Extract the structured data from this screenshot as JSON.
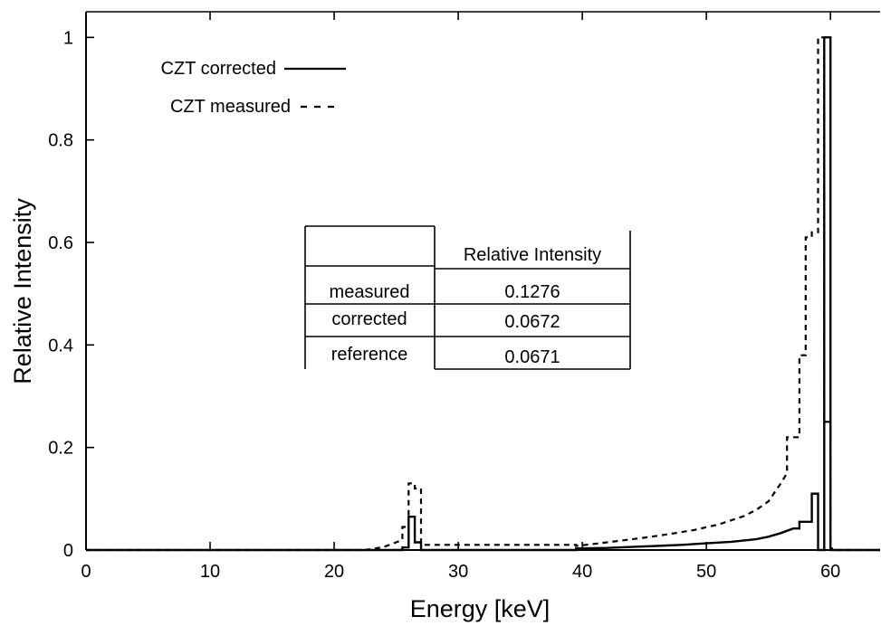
{
  "chart_data": {
    "type": "line",
    "title": "",
    "xlabel": "Energy [keV]",
    "ylabel": "Relative Intensity",
    "xlim": [
      0,
      64
    ],
    "ylim": [
      0,
      1.05
    ],
    "xticks": [
      0,
      10,
      20,
      30,
      40,
      50,
      60
    ],
    "xtick_labels": [
      "0",
      "10",
      "20",
      "30",
      "40",
      "50",
      "60"
    ],
    "yticks": [
      0,
      0.2,
      0.4,
      0.6,
      0.8,
      1
    ],
    "ytick_labels": [
      "0",
      "0.2",
      "0.4",
      "0.6",
      "0.8",
      "1"
    ],
    "grid": false,
    "legend_position": "top-left",
    "series": [
      {
        "name": "CZT corrected",
        "style": "solid",
        "x": [
          0,
          25.5,
          25.5,
          26,
          26,
          26.5,
          26.5,
          27,
          27,
          39.5,
          39.5,
          42,
          44,
          46,
          48,
          50,
          52,
          54,
          55,
          56,
          57,
          57.5,
          57.5,
          58.5,
          58.5,
          59,
          59,
          59.5,
          59.5,
          60,
          60,
          64
        ],
        "y": [
          0,
          0,
          0.005,
          0.005,
          0.065,
          0.065,
          0.015,
          0.015,
          0,
          0,
          0.003,
          0.004,
          0.006,
          0.008,
          0.01,
          0.013,
          0.016,
          0.021,
          0.026,
          0.033,
          0.042,
          0.042,
          0.055,
          0.055,
          0.11,
          0.11,
          0,
          0,
          1.0,
          1.0,
          0,
          0
        ]
      },
      {
        "name": "CZT measured",
        "style": "dashed",
        "x": [
          0,
          22.5,
          23,
          24,
          25,
          25.5,
          25.5,
          26,
          26,
          26.5,
          26.5,
          27,
          27,
          39.5,
          39.5,
          41,
          43,
          45,
          47,
          49,
          51,
          53,
          54,
          55,
          56,
          56.5,
          56.5,
          57.5,
          57.5,
          58,
          58,
          58.5,
          58.5,
          59,
          59,
          59.5,
          59.5,
          60,
          60,
          60.5,
          60.5,
          64
        ],
        "y": [
          0,
          0,
          0.002,
          0.006,
          0.015,
          0.02,
          0.045,
          0.045,
          0.13,
          0.13,
          0.12,
          0.12,
          0.01,
          0.01,
          0.008,
          0.012,
          0.018,
          0.024,
          0.031,
          0.039,
          0.05,
          0.066,
          0.078,
          0.095,
          0.13,
          0.15,
          0.22,
          0.22,
          0.38,
          0.38,
          0.61,
          0.61,
          0.62,
          0.62,
          1.0,
          1.0,
          0.25,
          0.25,
          0.003,
          0.003,
          0,
          0
        ]
      }
    ],
    "inset_table": {
      "header": [
        "",
        "Relative Intensity"
      ],
      "rows": [
        [
          "measured",
          "0.1276"
        ],
        [
          "corrected",
          "0.0672"
        ],
        [
          "reference",
          "0.0671"
        ]
      ]
    }
  }
}
